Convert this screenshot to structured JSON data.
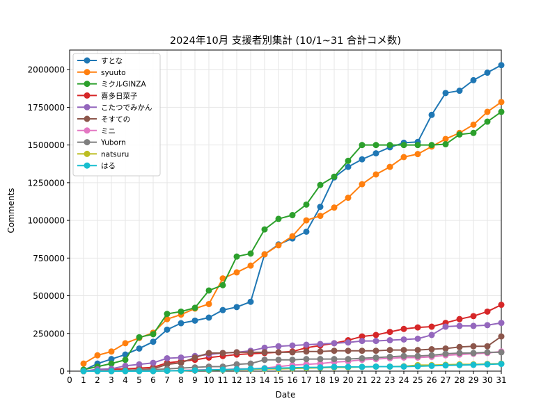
{
  "chart_data": {
    "type": "line",
    "title": "2024年10月 支援者別集計 (10/1~31 合計コメ数)",
    "xlabel": "Date",
    "ylabel": "Comments",
    "xlim": [
      0,
      31
    ],
    "ylim": [
      0,
      2130000
    ],
    "x_ticks": [
      0,
      1,
      2,
      3,
      4,
      5,
      6,
      7,
      8,
      9,
      10,
      11,
      12,
      13,
      14,
      15,
      16,
      17,
      18,
      19,
      20,
      21,
      22,
      23,
      24,
      25,
      26,
      27,
      28,
      29,
      30,
      31
    ],
    "y_ticks": [
      0,
      250000,
      500000,
      750000,
      1000000,
      1250000,
      1500000,
      1750000,
      2000000
    ],
    "grid": true,
    "legend_position": "top-left",
    "x": [
      1,
      2,
      3,
      4,
      5,
      6,
      7,
      8,
      9,
      10,
      11,
      12,
      13,
      14,
      15,
      16,
      17,
      18,
      19,
      20,
      21,
      22,
      23,
      24,
      25,
      26,
      27,
      28,
      29,
      30,
      31
    ],
    "series": [
      {
        "name": "すとな",
        "color": "#1f77b4",
        "values": [
          5000,
          50000,
          80000,
          110000,
          150000,
          195000,
          275000,
          318000,
          335000,
          355000,
          405000,
          425000,
          460000,
          775000,
          840000,
          880000,
          925000,
          1090000,
          1285000,
          1355000,
          1405000,
          1445000,
          1485000,
          1515000,
          1520000,
          1700000,
          1845000,
          1860000,
          1930000,
          1980000,
          2030000
        ]
      },
      {
        "name": "syuuto",
        "color": "#ff7f0e",
        "values": [
          50000,
          105000,
          130000,
          185000,
          220000,
          255000,
          345000,
          375000,
          415000,
          445000,
          615000,
          655000,
          700000,
          775000,
          835000,
          895000,
          1000000,
          1030000,
          1085000,
          1150000,
          1240000,
          1305000,
          1355000,
          1420000,
          1440000,
          1490000,
          1540000,
          1580000,
          1635000,
          1720000,
          1785000
        ]
      },
      {
        "name": "ミクルGINZA",
        "color": "#2ca02c",
        "values": [
          10000,
          30000,
          50000,
          75000,
          225000,
          245000,
          380000,
          395000,
          420000,
          535000,
          570000,
          760000,
          780000,
          940000,
          1010000,
          1035000,
          1105000,
          1235000,
          1290000,
          1395000,
          1500000,
          1500000,
          1500000,
          1500000,
          1500000,
          1500000,
          1505000,
          1570000,
          1580000,
          1655000,
          1720000
        ]
      },
      {
        "name": "喜多日菜子",
        "color": "#d62728",
        "values": [
          0,
          10000,
          12000,
          15000,
          20000,
          25000,
          55000,
          65000,
          75000,
          90000,
          100000,
          110000,
          115000,
          120000,
          125000,
          130000,
          155000,
          170000,
          185000,
          205000,
          230000,
          240000,
          260000,
          280000,
          290000,
          295000,
          320000,
          345000,
          365000,
          395000,
          440000
        ]
      },
      {
        "name": "こたつでみかん",
        "color": "#9467bd",
        "values": [
          0,
          12000,
          15000,
          35000,
          45000,
          55000,
          85000,
          90000,
          100000,
          110000,
          120000,
          125000,
          135000,
          155000,
          165000,
          170000,
          175000,
          180000,
          185000,
          190000,
          200000,
          200000,
          205000,
          210000,
          215000,
          240000,
          295000,
          300000,
          300000,
          305000,
          320000
        ]
      },
      {
        "name": "そすての",
        "color": "#8c564b",
        "values": [
          0,
          0,
          2000,
          5000,
          10000,
          15000,
          45000,
          55000,
          90000,
          120000,
          120000,
          125000,
          125000,
          125000,
          125000,
          125000,
          130000,
          130000,
          135000,
          135000,
          135000,
          135000,
          140000,
          140000,
          140000,
          145000,
          150000,
          160000,
          165000,
          165000,
          230000
        ]
      },
      {
        "name": "ミニ",
        "color": "#e377c2",
        "values": [
          0,
          0,
          0,
          0,
          0,
          0,
          2000,
          5000,
          8000,
          10000,
          10000,
          15000,
          15000,
          20000,
          30000,
          40000,
          45000,
          50000,
          60000,
          65000,
          75000,
          80000,
          85000,
          90000,
          90000,
          95000,
          105000,
          110000,
          115000,
          120000,
          130000
        ]
      },
      {
        "name": "Yuborn",
        "color": "#7f7f7f",
        "values": [
          0,
          0,
          0,
          5000,
          8000,
          10000,
          15000,
          20000,
          25000,
          30000,
          30000,
          45000,
          50000,
          75000,
          75000,
          75000,
          80000,
          80000,
          80000,
          80000,
          85000,
          90000,
          95000,
          100000,
          100000,
          105000,
          115000,
          120000,
          120000,
          125000,
          125000
        ]
      },
      {
        "name": "natsuru",
        "color": "#bcbd22",
        "values": [
          0,
          0,
          0,
          0,
          0,
          0,
          2000,
          3000,
          5000,
          5000,
          8000,
          10000,
          12000,
          15000,
          15000,
          18000,
          20000,
          22000,
          25000,
          25000,
          28000,
          30000,
          30000,
          32000,
          40000,
          40000,
          42000,
          45000,
          45000,
          48000,
          50000
        ]
      },
      {
        "name": "はる",
        "color": "#17becf",
        "values": [
          0,
          0,
          0,
          0,
          0,
          0,
          2000,
          3000,
          5000,
          8000,
          10000,
          12000,
          15000,
          18000,
          20000,
          22000,
          25000,
          25000,
          28000,
          28000,
          28000,
          30000,
          30000,
          30000,
          32000,
          35000,
          38000,
          40000,
          42000,
          45000,
          48000
        ]
      }
    ]
  }
}
